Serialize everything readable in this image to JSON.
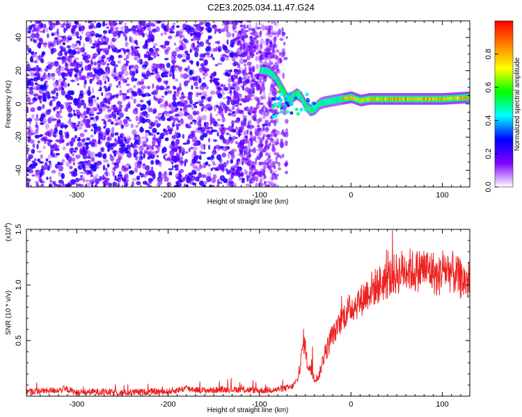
{
  "title": "C2E3.2025.034.11.47.G24",
  "chart_data": [
    {
      "type": "heatmap",
      "xlabel": "Height of straight line (km)",
      "ylabel": "Frequency (Hz)",
      "xlim": [
        -355,
        130
      ],
      "ylim": [
        -50,
        50
      ],
      "x_ticks": [
        -300,
        -200,
        -100,
        0,
        100
      ],
      "y_ticks": [
        -40,
        -20,
        0,
        20,
        40
      ],
      "colorbar": {
        "label": "Normalized spectral amplitude",
        "range": [
          0,
          1
        ],
        "ticks": [
          "0.0",
          "0.2",
          "0.4",
          "0.6",
          "0.8"
        ],
        "tick_values": [
          0,
          0.2,
          0.4,
          0.6,
          0.8
        ],
        "colormap": [
          "#ffffff",
          "#8000ff",
          "#0000ff",
          "#00ffff",
          "#00ff00",
          "#ffff00",
          "#ff8000",
          "#ff0000"
        ]
      },
      "ridge": {
        "x": [
          -100,
          -92,
          -85,
          -80,
          -75,
          -70,
          -65,
          -60,
          -55,
          -50,
          -45,
          -40,
          -35,
          -30,
          -20,
          -10,
          0,
          10,
          20,
          40,
          60,
          80,
          100,
          130
        ],
        "y": [
          20,
          20,
          17,
          13,
          8,
          3,
          4,
          6,
          4,
          -1,
          -4,
          -3,
          0,
          1,
          2,
          3,
          4,
          2,
          3,
          3,
          3,
          3,
          3,
          4
        ]
      }
    },
    {
      "type": "line",
      "xlabel": "Height of straight line (km)",
      "ylabel": "SNR (10 * v/v)",
      "y_multiplier": "(x10",
      "y_multiplier_exp": "4",
      "y_multiplier_close": ")",
      "xlim": [
        -355,
        130
      ],
      "ylim": [
        0,
        1.5
      ],
      "x_ticks": [
        -300,
        -200,
        -100,
        0,
        100
      ],
      "y_ticks": [
        "0.5",
        "1.0",
        "1.5"
      ],
      "y_tick_values": [
        0.5,
        1.0,
        1.5
      ],
      "color": "#ee2222",
      "series": [
        {
          "x": [
            -355,
            -330,
            -310,
            -300,
            -280,
            -250,
            -220,
            -200,
            -180,
            -160,
            -140,
            -120,
            -100,
            -80,
            -65,
            -58,
            -55,
            -52,
            -50,
            -48,
            -45,
            -40,
            -35,
            -30,
            -25,
            -20,
            -15,
            -10,
            0,
            10,
            20,
            30,
            40,
            50,
            60,
            70,
            80,
            90,
            95,
            100,
            110,
            120,
            130
          ],
          "y": [
            0.04,
            0.05,
            0.06,
            0.03,
            0.04,
            0.03,
            0.04,
            0.04,
            0.07,
            0.05,
            0.06,
            0.06,
            0.05,
            0.06,
            0.08,
            0.15,
            0.3,
            0.5,
            0.45,
            0.3,
            0.25,
            0.15,
            0.18,
            0.35,
            0.45,
            0.55,
            0.6,
            0.7,
            0.8,
            0.85,
            0.95,
            1.0,
            1.05,
            1.1,
            1.15,
            1.12,
            1.15,
            1.12,
            1.05,
            1.15,
            1.12,
            1.05,
            1.02
          ]
        }
      ]
    }
  ]
}
